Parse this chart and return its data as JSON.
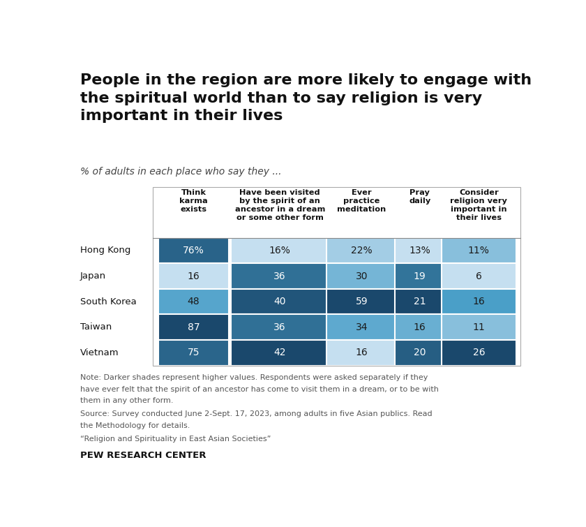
{
  "title": "People in the region are more likely to engage with\nthe spiritual world than to say religion is very\nimportant in their lives",
  "subtitle": "% of adults in each place who say they ...",
  "columns": [
    "Think\nkarma\nexists",
    "Have been visited\nby the spirit of an\nancestor in a dream\nor some other form",
    "Ever\npractice\nmeditation",
    "Pray\ndaily",
    "Consider\nreligion very\nimportant in\ntheir lives"
  ],
  "rows": [
    "Hong Kong",
    "Japan",
    "South Korea",
    "Taiwan",
    "Vietnam"
  ],
  "data": [
    [
      76,
      16,
      22,
      13,
      11
    ],
    [
      16,
      36,
      30,
      19,
      6
    ],
    [
      48,
      40,
      59,
      21,
      16
    ],
    [
      87,
      36,
      34,
      16,
      11
    ],
    [
      75,
      42,
      16,
      20,
      26
    ]
  ],
  "display_values": [
    [
      "76%",
      "16%",
      "22%",
      "13%",
      "11%"
    ],
    [
      "16",
      "36",
      "30",
      "19",
      "6"
    ],
    [
      "48",
      "40",
      "59",
      "21",
      "16"
    ],
    [
      "87",
      "36",
      "34",
      "16",
      "11"
    ],
    [
      "75",
      "42",
      "16",
      "20",
      "26"
    ]
  ],
  "col_max": [
    87,
    42,
    59,
    21,
    26
  ],
  "col_min": [
    16,
    16,
    16,
    13,
    6
  ],
  "note1": "Note: Darker shades represent higher values. Respondents were asked separately if they",
  "note2": "have ever felt that the spirit of an ancestor has come to visit them in a dream, or to be with",
  "note3": "them in any other form.",
  "source1": "Source: Survey conducted June 2-Sept. 17, 2023, among adults in five Asian publics. Read",
  "source2": "the Methodology for details.",
  "quote": "“Religion and Spirituality in East Asian Societies”",
  "footer": "PEW RESEARCH CENTER",
  "bg_color": "#ffffff"
}
